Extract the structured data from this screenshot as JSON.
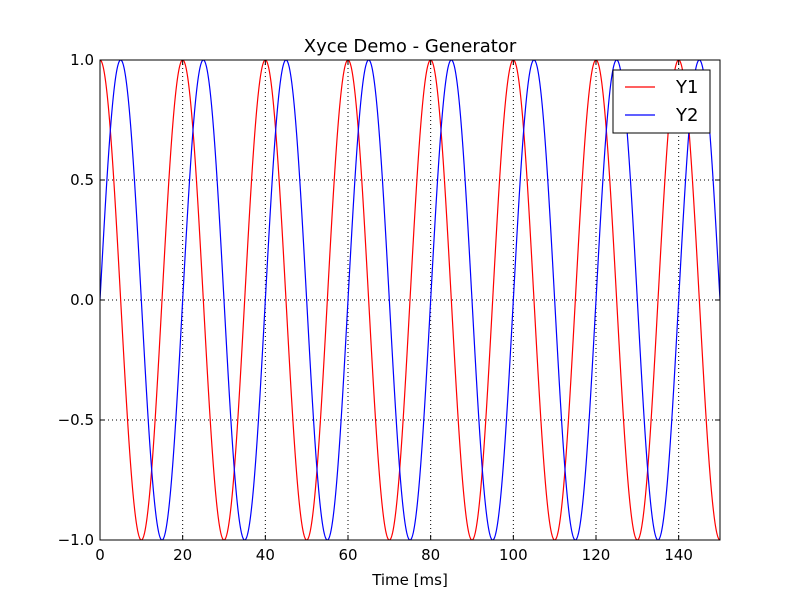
{
  "chart_data": {
    "type": "line",
    "title": "Xyce Demo - Generator",
    "xlabel": "Time [ms]",
    "ylabel": "",
    "xlim": [
      0,
      150
    ],
    "ylim": [
      -1.0,
      1.0
    ],
    "x_ticks": [
      0,
      20,
      40,
      60,
      80,
      100,
      120,
      140
    ],
    "x_tick_labels": [
      "0",
      "20",
      "40",
      "60",
      "80",
      "100",
      "120",
      "140"
    ],
    "y_ticks": [
      1.0,
      0.5,
      0.0,
      -0.5,
      -1.0
    ],
    "y_tick_labels": [
      "1.0",
      "0.5",
      "0.0",
      "−0.5",
      "−1.0"
    ],
    "grid": true,
    "legend_position": "top-right",
    "series": [
      {
        "name": "Y1",
        "color": "#ff0000",
        "function": "cos",
        "period_ms": 20,
        "amplitude": 1.0
      },
      {
        "name": "Y2",
        "color": "#0000ff",
        "function": "sin",
        "period_ms": 20,
        "amplitude": 1.0
      }
    ]
  }
}
